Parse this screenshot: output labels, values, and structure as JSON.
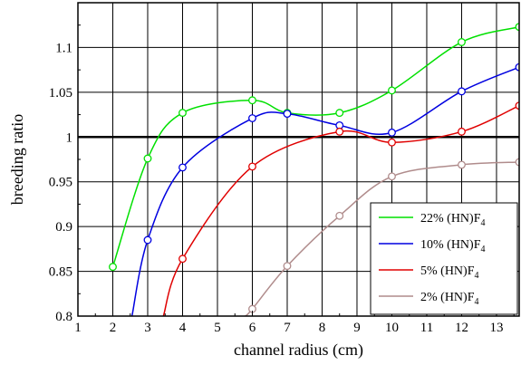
{
  "chart_data": {
    "type": "line",
    "title": "",
    "xlabel": "channel radius (cm)",
    "ylabel": "breeding ratio",
    "xlim": [
      1,
      13.65
    ],
    "ylim": [
      0.8,
      1.15
    ],
    "xticks": [
      1,
      2,
      3,
      4,
      5,
      6,
      7,
      8,
      9,
      10,
      11,
      12,
      13
    ],
    "yticks": [
      0.8,
      0.85,
      0.9,
      0.95,
      1,
      1.05,
      1.1
    ],
    "ytick_labels": [
      "0.8",
      "0.85",
      "0.9",
      "0.95",
      "1",
      "1.05",
      "1.1"
    ],
    "grid": true,
    "reference_line": 1.0,
    "legend_position": "bottom-right",
    "series": [
      {
        "name": "22% (HN)F4",
        "label_main": "22% (HN)F",
        "label_sub": "4",
        "color": "#00e000",
        "points": [
          [
            2,
            0.855
          ],
          [
            3,
            0.976
          ],
          [
            4,
            1.027
          ],
          [
            6,
            1.041
          ],
          [
            7,
            1.027
          ],
          [
            8.5,
            1.027
          ],
          [
            10,
            1.052
          ],
          [
            12,
            1.106
          ],
          [
            13.65,
            1.123
          ]
        ]
      },
      {
        "name": "10% (HN)F4",
        "label_main": "10% (HN)F",
        "label_sub": "4",
        "color": "#0000e0",
        "points": [
          [
            2.55,
            0.8
          ],
          [
            3,
            0.885
          ],
          [
            4,
            0.966
          ],
          [
            6,
            1.021
          ],
          [
            7,
            1.026
          ],
          [
            8.5,
            1.013
          ],
          [
            10,
            1.005
          ],
          [
            12,
            1.051
          ],
          [
            13.65,
            1.078
          ]
        ]
      },
      {
        "name": "5% (HN)F4",
        "label_main": "5% (HN)F",
        "label_sub": "4",
        "color": "#e00000",
        "points": [
          [
            3.45,
            0.8
          ],
          [
            4,
            0.864
          ],
          [
            6,
            0.967
          ],
          [
            8.5,
            1.006
          ],
          [
            10,
            0.994
          ],
          [
            12,
            1.006
          ],
          [
            13.65,
            1.035
          ]
        ]
      },
      {
        "name": "2% (HN)F4",
        "label_main": "2% (HN)F",
        "label_sub": "4",
        "color": "#b08c8c",
        "points": [
          [
            5.8,
            0.8
          ],
          [
            6,
            0.808
          ],
          [
            7,
            0.856
          ],
          [
            8.5,
            0.912
          ],
          [
            10,
            0.956
          ],
          [
            12,
            0.969
          ],
          [
            13.65,
            0.972
          ]
        ]
      }
    ]
  }
}
